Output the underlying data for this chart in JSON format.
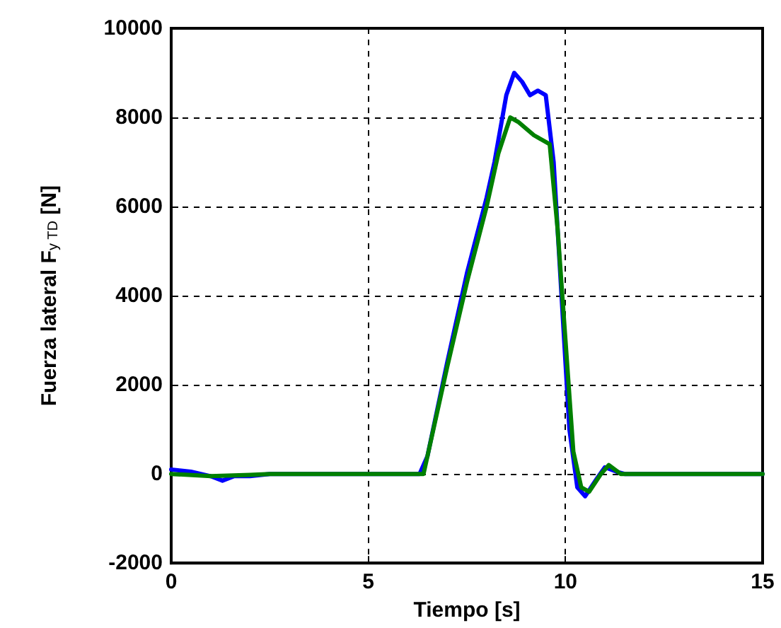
{
  "chart_data": {
    "type": "line",
    "xlabel": "Tiempo [s]",
    "ylabel": "Fuerza lateral F$_{y TD}$ [N]",
    "xlim": [
      0,
      15
    ],
    "xticks": [
      0,
      5,
      10,
      15
    ],
    "ylim": [
      -2000,
      10000
    ],
    "yticks": [
      -2000,
      0,
      2000,
      4000,
      6000,
      8000,
      10000
    ],
    "grid": true,
    "line_style": "solid",
    "series": [
      {
        "color": "#0000ff",
        "x": [
          0,
          0.5,
          1,
          1.3,
          1.6,
          2,
          2.5,
          6.3,
          6.5,
          7,
          7.5,
          8,
          8.2,
          8.5,
          8.7,
          8.9,
          9.1,
          9.3,
          9.5,
          9.7,
          9.9,
          10.1,
          10.3,
          10.5,
          10.8,
          11,
          11.3,
          11.5,
          15
        ],
        "values": [
          100,
          50,
          -50,
          -150,
          -50,
          -50,
          0,
          0,
          400,
          2500,
          4500,
          6200,
          7000,
          8500,
          9000,
          8800,
          8500,
          8600,
          8500,
          7000,
          4000,
          1000,
          -300,
          -500,
          -100,
          150,
          50,
          0,
          0
        ]
      },
      {
        "color": "#008000",
        "x": [
          0,
          1,
          2,
          2.5,
          6.4,
          7,
          7.5,
          8,
          8.3,
          8.6,
          8.8,
          9.2,
          9.6,
          9.8,
          10,
          10.2,
          10.4,
          10.6,
          10.9,
          11.1,
          11.4,
          15
        ],
        "values": [
          0,
          -50,
          -20,
          0,
          0,
          2400,
          4300,
          6000,
          7200,
          8000,
          7900,
          7600,
          7400,
          5500,
          3000,
          500,
          -300,
          -400,
          0,
          200,
          0,
          0
        ]
      }
    ]
  }
}
